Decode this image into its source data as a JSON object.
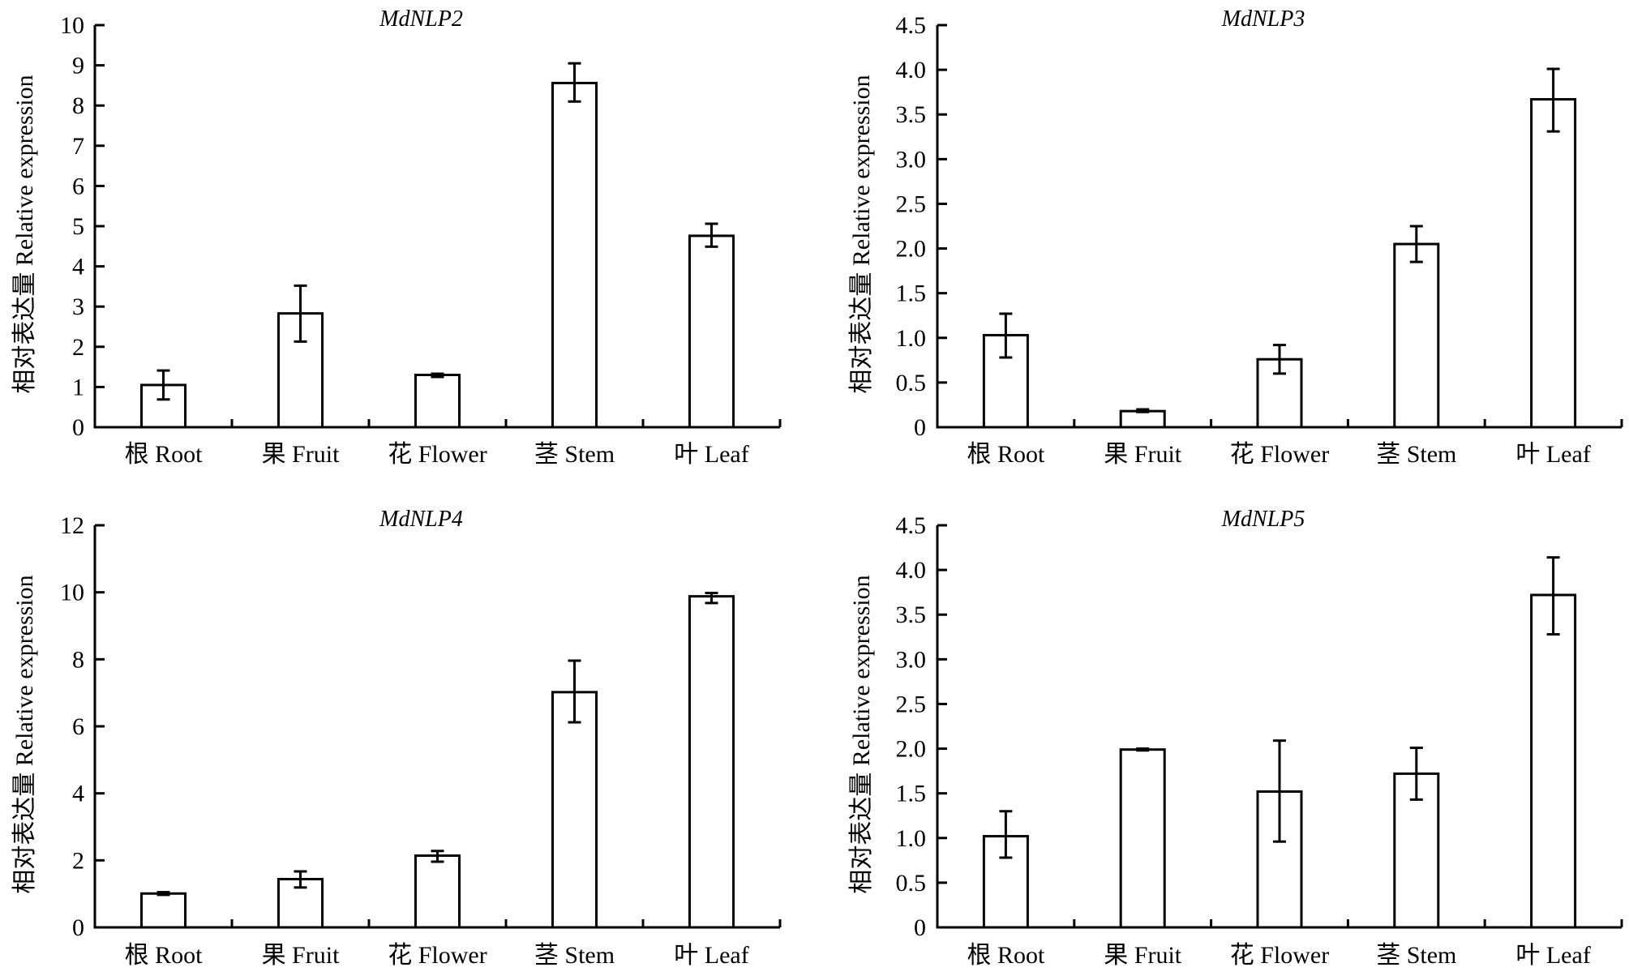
{
  "chart_data": [
    {
      "type": "bar",
      "title": "MdNLP2",
      "ylabel": "相对表达量 Relative expression",
      "xlabel": "",
      "categories": [
        "根 Root",
        "果 Fruit",
        "花 Flower",
        "茎 Stem",
        "叶 Leaf"
      ],
      "values": [
        1.05,
        2.83,
        1.3,
        8.56,
        4.76
      ],
      "error_upper": [
        1.41,
        3.52,
        1.33,
        9.05,
        5.06
      ],
      "error_lower": [
        0.69,
        2.13,
        1.25,
        8.1,
        4.49
      ],
      "ylim": [
        0,
        10
      ],
      "yticks": [
        "0",
        "1",
        "2",
        "3",
        "4",
        "5",
        "6",
        "7",
        "8",
        "9",
        "10"
      ],
      "ytick_values": [
        0,
        1,
        2,
        3,
        4,
        5,
        6,
        7,
        8,
        9,
        10
      ],
      "grid": false
    },
    {
      "type": "bar",
      "title": "MdNLP3",
      "ylabel": "相对表达量 Relative expression",
      "xlabel": "",
      "categories": [
        "根 Root",
        "果 Fruit",
        "花 Flower",
        "茎 Stem",
        "叶 Leaf"
      ],
      "values": [
        1.03,
        0.18,
        0.76,
        2.05,
        3.67
      ],
      "error_upper": [
        1.27,
        0.2,
        0.92,
        2.25,
        4.01
      ],
      "error_lower": [
        0.78,
        0.17,
        0.6,
        1.85,
        3.31
      ],
      "ylim": [
        0,
        4.5
      ],
      "yticks": [
        "0",
        "0.5",
        "1.0",
        "1.5",
        "2.0",
        "2.5",
        "3.0",
        "3.5",
        "4.0",
        "4.5"
      ],
      "ytick_values": [
        0,
        0.5,
        1.0,
        1.5,
        2.0,
        2.5,
        3.0,
        3.5,
        4.0,
        4.5
      ],
      "grid": false
    },
    {
      "type": "bar",
      "title": "MdNLP4",
      "ylabel": "相对表达量 Relative expression",
      "xlabel": "",
      "categories": [
        "根 Root",
        "果 Fruit",
        "花 Flower",
        "茎 Stem",
        "叶 Leaf"
      ],
      "values": [
        1.01,
        1.44,
        2.14,
        7.02,
        9.88
      ],
      "error_upper": [
        1.05,
        1.67,
        2.28,
        7.96,
        9.98
      ],
      "error_lower": [
        0.97,
        1.19,
        1.96,
        6.12,
        9.68
      ],
      "ylim": [
        0,
        12
      ],
      "yticks": [
        "0",
        "2",
        "4",
        "6",
        "8",
        "10",
        "12"
      ],
      "ytick_values": [
        0,
        2,
        4,
        6,
        8,
        10,
        12
      ],
      "grid": false
    },
    {
      "type": "bar",
      "title": "MdNLP5",
      "ylabel": "相对表达量 Relative expression",
      "xlabel": "",
      "categories": [
        "根 Root",
        "果 Fruit",
        "花 Flower",
        "茎 Stem",
        "叶 Leaf"
      ],
      "values": [
        1.02,
        1.99,
        1.52,
        1.72,
        3.72
      ],
      "error_upper": [
        1.3,
        2.0,
        2.09,
        2.01,
        4.14
      ],
      "error_lower": [
        0.78,
        1.98,
        0.96,
        1.43,
        3.28
      ],
      "ylim": [
        0,
        4.5
      ],
      "yticks": [
        "0",
        "0.5",
        "1.0",
        "1.5",
        "2.0",
        "2.5",
        "3.0",
        "3.5",
        "4.0",
        "4.5"
      ],
      "ytick_values": [
        0,
        0.5,
        1.0,
        1.5,
        2.0,
        2.5,
        3.0,
        3.5,
        4.0,
        4.5
      ],
      "grid": false
    }
  ],
  "colors": {
    "bar_fill": "#ffffff",
    "stroke": "#000000"
  }
}
